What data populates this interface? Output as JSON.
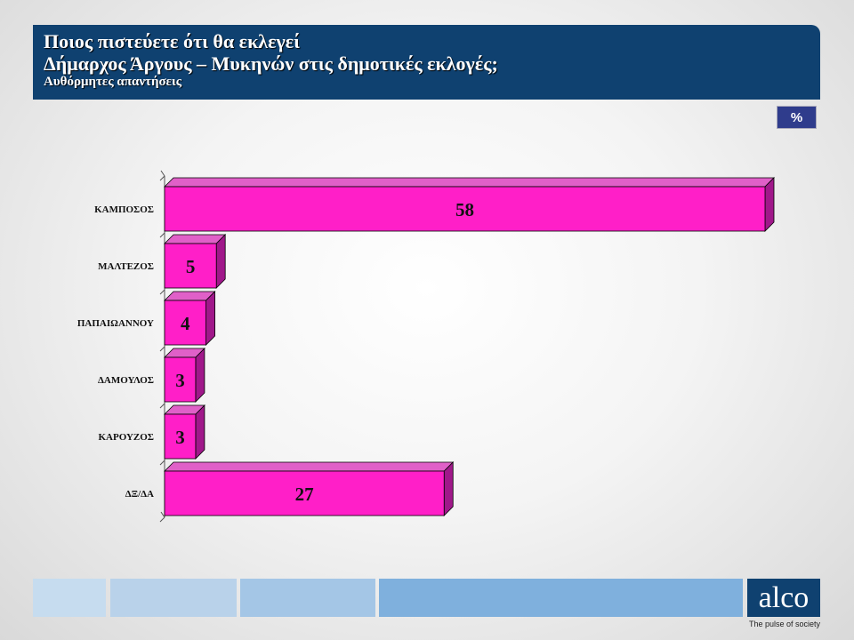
{
  "header": {
    "title_line1": "Ποιος πιστεύετε ότι θα εκλεγεί",
    "title_line2": "Δήμαρχος Άργους – Μυκηνών στις δημοτικές εκλογές;",
    "subtitle": "Αυθόρμητες απαντήσεις"
  },
  "unit_badge": "%",
  "brand": {
    "logo_text": "alco",
    "tagline": "The pulse of society"
  },
  "colors": {
    "header_bg": "#0f4170",
    "bar_front": "#ff1fc8",
    "bar_top": "#e060c8",
    "bar_side": "#a0188a",
    "footer_blocks": [
      "#c6dcef",
      "#b9d2ea",
      "#a4c6e6",
      "#7fb0dd"
    ]
  },
  "chart_data": {
    "type": "bar",
    "orientation": "horizontal",
    "style": "3d",
    "categories": [
      "ΚΑΜΠΟΣΟΣ",
      "ΜΑΛΤΕΖΟΣ",
      "ΠΑΠΑΙΩΑΝΝΟΥ",
      "ΔΑΜΟΥΛΟΣ",
      "ΚΑΡΟΥΖΟΣ",
      "ΔΞ/ΔΑ"
    ],
    "values": [
      58,
      5,
      4,
      3,
      3,
      27
    ],
    "data_labels": [
      "58",
      "5",
      "4",
      "3",
      "3",
      "27"
    ],
    "xlim": [
      0,
      58
    ],
    "grid": false,
    "legend": "none"
  }
}
